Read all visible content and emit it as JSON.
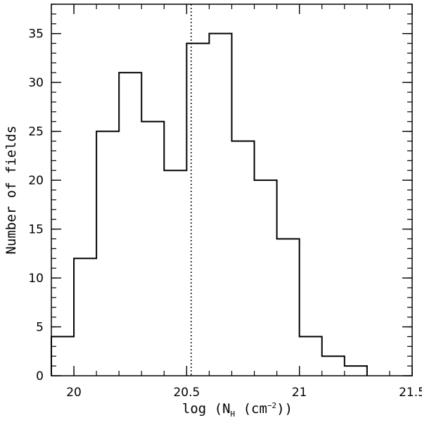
{
  "chart_data": {
    "type": "histogram",
    "xlabel": {
      "prefix": "log (N",
      "subscript": "H",
      "middle": " (cm",
      "superscript": "−2",
      "suffix": "))"
    },
    "ylabel": "Number of fields",
    "xlim": [
      19.9,
      21.5
    ],
    "ylim": [
      0,
      38
    ],
    "bins": [
      {
        "x0": 19.9,
        "x1": 20.0,
        "count": 4
      },
      {
        "x0": 20.0,
        "x1": 20.1,
        "count": 12
      },
      {
        "x0": 20.1,
        "x1": 20.2,
        "count": 25
      },
      {
        "x0": 20.2,
        "x1": 20.3,
        "count": 31
      },
      {
        "x0": 20.3,
        "x1": 20.4,
        "count": 26
      },
      {
        "x0": 20.4,
        "x1": 20.5,
        "count": 21
      },
      {
        "x0": 20.5,
        "x1": 20.6,
        "count": 34
      },
      {
        "x0": 20.6,
        "x1": 20.7,
        "count": 35
      },
      {
        "x0": 20.7,
        "x1": 20.8,
        "count": 24
      },
      {
        "x0": 20.8,
        "x1": 20.9,
        "count": 20
      },
      {
        "x0": 20.9,
        "x1": 21.0,
        "count": 14
      },
      {
        "x0": 21.0,
        "x1": 21.1,
        "count": 4
      },
      {
        "x0": 21.1,
        "x1": 21.2,
        "count": 2
      },
      {
        "x0": 21.2,
        "x1": 21.3,
        "count": 1
      }
    ],
    "reference_line": {
      "x": 20.52,
      "style": "dotted"
    },
    "x_major_ticks": [
      20,
      20.5,
      21,
      21.5
    ],
    "x_tick_labels": [
      "20",
      "20.5",
      "21",
      "21.5"
    ],
    "x_minor_step": 0.1,
    "y_major_ticks": [
      0,
      5,
      10,
      15,
      20,
      25,
      30,
      35
    ],
    "y_tick_labels": [
      "0",
      "5",
      "10",
      "15",
      "20",
      "25",
      "30",
      "35"
    ],
    "y_minor_step": 1,
    "grid": false,
    "line_color": "#000000"
  }
}
